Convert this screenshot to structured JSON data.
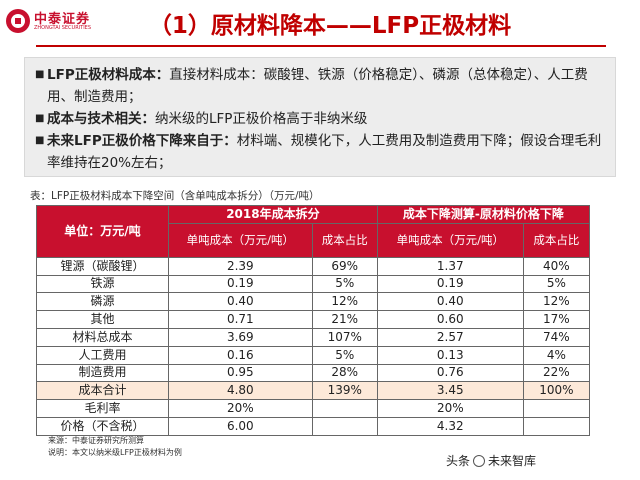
{
  "logo": {
    "name": "中泰证券",
    "english": "ZHONGTAI SECURITIES"
  },
  "title": "（1）原材料降本——LFP正极材料",
  "bullets": [
    {
      "lead": "LFP正极材料成本：",
      "text": "直接材料成本：碳酸锂、铁源（价格稳定）、磷源（总体稳定）、人工费用、制造费用；"
    },
    {
      "lead": "成本与技术相关：",
      "text": "纳米级的LFP正极价格高于非纳米级"
    },
    {
      "lead": "未来LFP正极价格下降来自于：",
      "text": "材料端、规模化下，人工费用及制造费用下降；假设合理毛利率维持在20%左右；"
    }
  ],
  "bullet_symbol": "■",
  "table": {
    "caption": "表：LFP正极材料成本下降空间（含单吨成本拆分）（万元/吨）",
    "unit_header": "单位：万元/吨",
    "group_2018": "2018年成本拆分",
    "group_forecast": "成本下降测算-原材料价格下降",
    "sub_cost": "单吨成本（万元/吨）",
    "sub_share": "成本占比",
    "rows": [
      {
        "label": "锂源（碳酸锂）",
        "c1": "2.39",
        "p1": "69%",
        "c2": "1.37",
        "p2": "40%"
      },
      {
        "label": "铁源",
        "c1": "0.19",
        "p1": "5%",
        "c2": "0.19",
        "p2": "5%"
      },
      {
        "label": "磷源",
        "c1": "0.40",
        "p1": "12%",
        "c2": "0.40",
        "p2": "12%"
      },
      {
        "label": "其他",
        "c1": "0.71",
        "p1": "21%",
        "c2": "0.60",
        "p2": "17%"
      },
      {
        "label": "材料总成本",
        "c1": "3.69",
        "p1": "107%",
        "c2": "2.57",
        "p2": "74%"
      },
      {
        "label": "人工费用",
        "c1": "0.16",
        "p1": "5%",
        "c2": "0.13",
        "p2": "4%"
      },
      {
        "label": "制造费用",
        "c1": "0.95",
        "p1": "28%",
        "c2": "0.76",
        "p2": "22%"
      },
      {
        "label": "成本合计",
        "c1": "4.80",
        "p1": "139%",
        "c2": "3.45",
        "p2": "100%"
      }
    ],
    "margin_label": "毛利率",
    "margin_2018": "20%",
    "margin_forecast": "20%",
    "price_label": "价格（不含税）",
    "price_2018": "6.00",
    "price_forecast": "4.32"
  },
  "source_line": "来源：中泰证券研究所测算",
  "note_line": "说明：本文以纳米级LFP正极材料为例",
  "watermark": {
    "prefix": "头条",
    "name": "未来智库"
  },
  "colors": {
    "brand_red": "#c8102e",
    "title_red": "#c00000",
    "total_row": "#fde9d9"
  }
}
